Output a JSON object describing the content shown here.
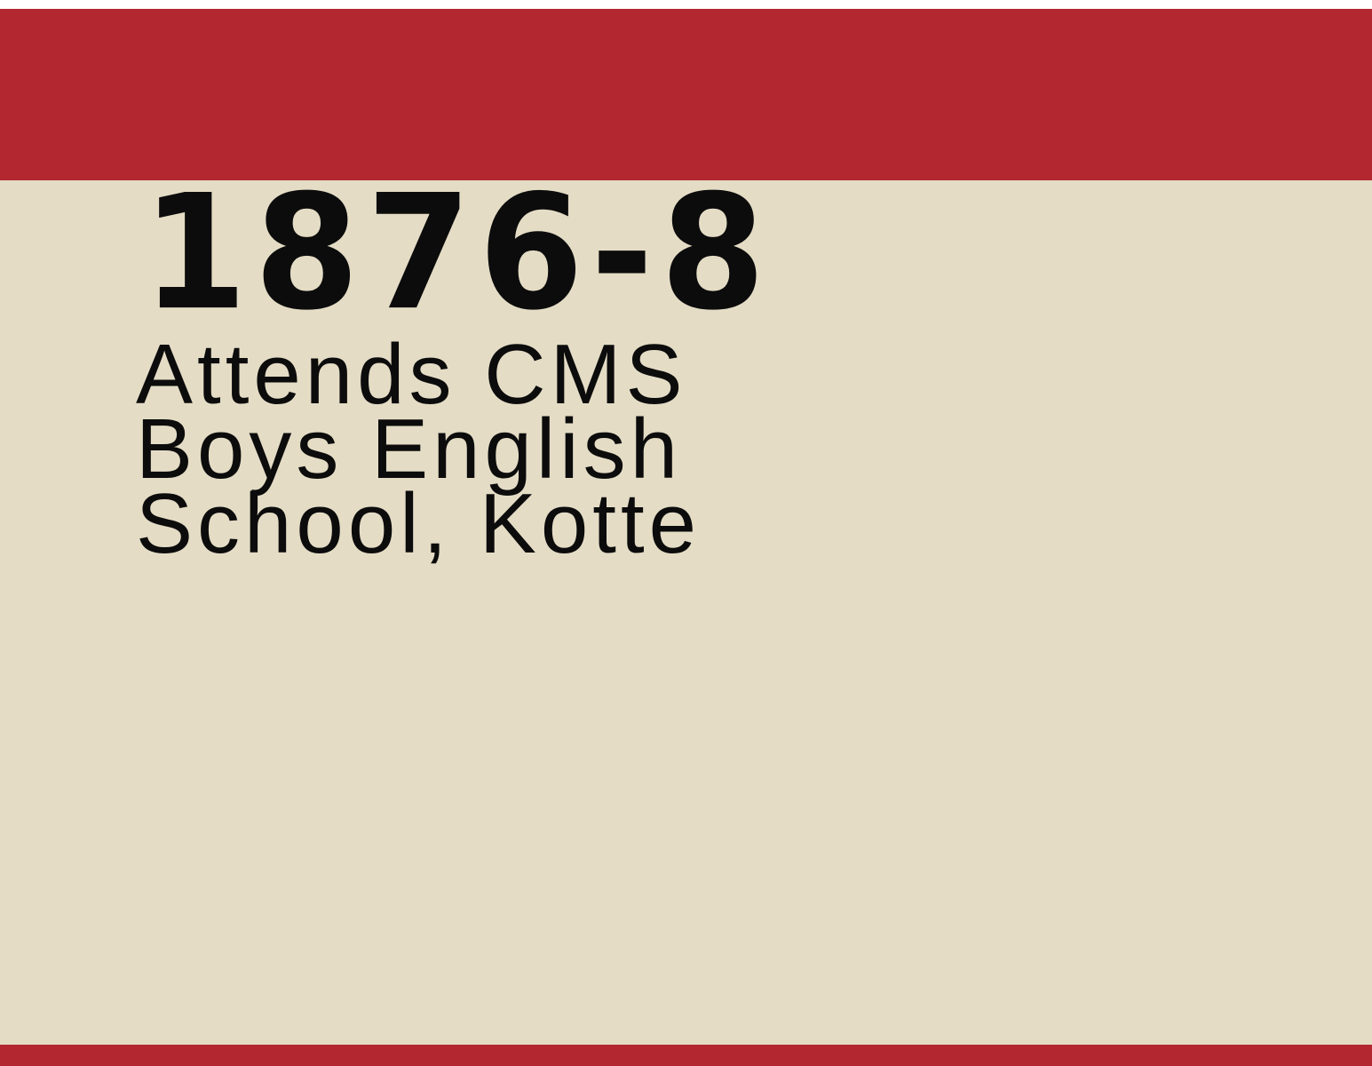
{
  "slide": {
    "year": "1876-8",
    "description_lines": [
      "Attends CMS",
      "Boys English",
      "School, Kotte"
    ]
  },
  "colors": {
    "band": "#b22730",
    "panel": "#e4dcc5",
    "text": "#0c0c0c"
  }
}
